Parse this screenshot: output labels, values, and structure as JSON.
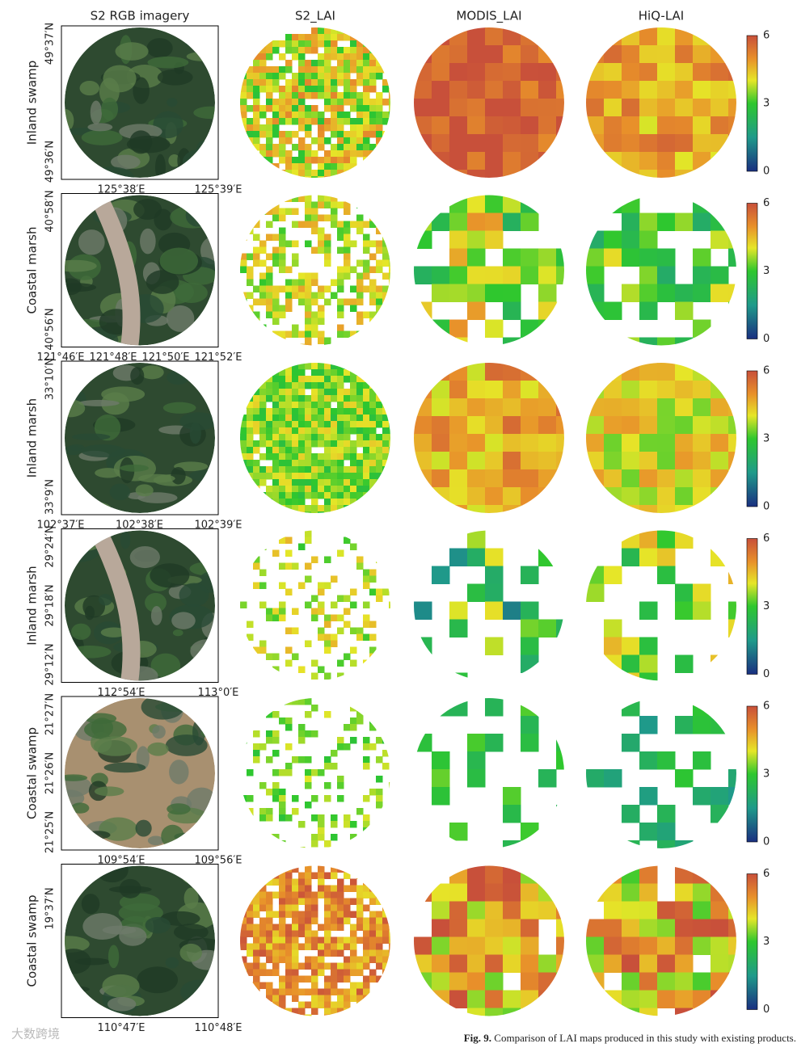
{
  "columns": [
    "S2 RGB imagery",
    "S2_LAI",
    "MODIS_LAI",
    "HiQ-LAI"
  ],
  "rows": [
    {
      "label": "Inland swamp",
      "lat_labels": [
        "49°37′N",
        "49°36′N"
      ],
      "lon_labels": [
        "125°38′E",
        "125°39′E"
      ],
      "colorbar_ticks": [
        6,
        3,
        0
      ]
    },
    {
      "label": "Coastal marsh",
      "lat_labels": [
        "40°58′N",
        "40°56′N"
      ],
      "lon_labels": [
        "121°46′E",
        "121°48′E",
        "121°50′E",
        "121°52′E"
      ],
      "colorbar_ticks": [
        6,
        3,
        0
      ]
    },
    {
      "label": "Inland marsh",
      "lat_labels": [
        "33°10′N",
        "33°9′N"
      ],
      "lon_labels": [
        "102°37′E",
        "102°38′E",
        "102°39′E"
      ],
      "colorbar_ticks": [
        6,
        3,
        0
      ]
    },
    {
      "label": "Inland marsh",
      "lat_labels": [
        "29°24′N",
        "29°18′N",
        "29°12′N"
      ],
      "lon_labels": [
        "112°54′E",
        "113°0′E"
      ],
      "colorbar_ticks": [
        6,
        3,
        0
      ]
    },
    {
      "label": "Coastal swamp",
      "lat_labels": [
        "21°27′N",
        "21°26′N",
        "21°25′N"
      ],
      "lon_labels": [
        "109°54′E",
        "109°56′E"
      ],
      "colorbar_ticks": [
        6,
        3,
        0
      ]
    },
    {
      "label": "Coastal swamp",
      "lat_labels": [
        "19°37′N"
      ],
      "lon_labels": [
        "110°47′E",
        "110°48′E"
      ],
      "colorbar_ticks": [
        6,
        3,
        0
      ]
    }
  ],
  "caption": {
    "label": "Fig. 9.",
    "text": "Comparison of LAI maps produced in this study with existing products."
  },
  "watermark": "大数跨境"
}
